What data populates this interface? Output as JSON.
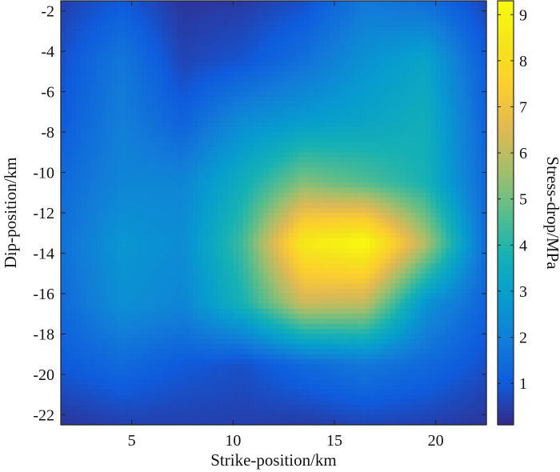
{
  "chart_data": {
    "type": "heatmap",
    "title": "",
    "xlabel": "Strike-position/km",
    "ylabel": "Dip-position/km",
    "colorbar_label": "Stress-drop/MPa",
    "colormap": "parula",
    "xlim": [
      1.5,
      22.5
    ],
    "ylim": [
      -22.5,
      -1.5
    ],
    "clim": [
      0.1,
      9.3
    ],
    "x_ticks": [
      5,
      10,
      15,
      20
    ],
    "y_ticks": [
      -2,
      -4,
      -6,
      -8,
      -10,
      -12,
      -14,
      -16,
      -18,
      -20,
      -22
    ],
    "colorbar_ticks": [
      1,
      2,
      3,
      4,
      5,
      6,
      7,
      8,
      9
    ],
    "grid": false,
    "x": [
      1.5,
      4.5,
      7.5,
      10.5,
      13.5,
      16.5,
      19.5,
      22.5
    ],
    "y": [
      -1.5,
      -4.5,
      -7.5,
      -10.5,
      -13.5,
      -16.5,
      -19.5,
      -22.5
    ],
    "values": [
      [
        0.5,
        1.0,
        0.3,
        0.4,
        0.8,
        1.8,
        1.5,
        0.6
      ],
      [
        0.8,
        1.8,
        0.6,
        0.9,
        1.6,
        2.6,
        3.2,
        1.0
      ],
      [
        1.0,
        2.0,
        1.2,
        2.4,
        2.9,
        3.2,
        3.6,
        1.2
      ],
      [
        1.4,
        2.2,
        2.2,
        3.6,
        5.2,
        4.6,
        3.8,
        1.3
      ],
      [
        1.6,
        2.7,
        2.4,
        4.4,
        8.6,
        9.3,
        5.8,
        1.4
      ],
      [
        1.4,
        2.5,
        2.2,
        3.8,
        6.2,
        6.0,
        2.6,
        1.2
      ],
      [
        1.0,
        1.4,
        1.0,
        0.8,
        1.4,
        1.8,
        1.4,
        0.8
      ],
      [
        0.3,
        0.5,
        0.5,
        0.5,
        0.4,
        0.6,
        0.5,
        0.3
      ]
    ]
  }
}
